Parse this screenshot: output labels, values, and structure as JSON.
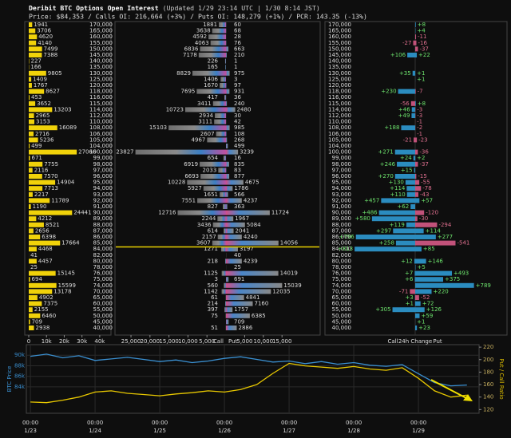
{
  "header": {
    "title": "Deribit BTC Options Open Interest",
    "updated": "(Updated 1/29 23:14 UTC | 1/30 8:14 JST)",
    "stats": "Price: $84,353 / Calls OI: 216,664 (+3%) / Puts OI: 148,279 (+1%) / PCR: 143.35 (-13%)"
  },
  "chart_data": [
    {
      "type": "hbar",
      "color": "#f0d20a",
      "values": [
        1941,
        3706,
        4620,
        4140,
        7499,
        7388,
        227,
        166,
        9805,
        1409,
        1767,
        8627,
        453,
        3652,
        13203,
        2965,
        3153,
        16089,
        2716,
        5236,
        499,
        27066,
        671,
        7755,
        2116,
        7570,
        14904,
        7713,
        2217,
        11789,
        1190,
        24441,
        4212,
        8521,
        2656,
        6398,
        17664,
        4468,
        41,
        4457,
        25,
        15145,
        694,
        15599,
        13178,
        4902,
        7375,
        2155,
        6460,
        709,
        2938
      ],
      "xlim": [
        0,
        45000
      ],
      "xticks": [
        0,
        {
          "value": 10000,
          "label": "10k"
        },
        {
          "value": 20000,
          "label": "20k"
        },
        {
          "value": 30000,
          "label": "30k"
        },
        {
          "value": 40000,
          "label": "40k"
        }
      ]
    },
    {
      "type": "butterfly",
      "categories": [
        {
          "value": 170000,
          "label": "170,000"
        },
        {
          "value": 165000,
          "label": "165,000"
        },
        {
          "value": 160000,
          "label": "160,000"
        },
        {
          "value": 155000,
          "label": "155,000"
        },
        {
          "value": 150000,
          "label": "150,000"
        },
        {
          "value": 145000,
          "label": "145,000"
        },
        {
          "value": 140000,
          "label": "140,000"
        },
        {
          "value": 135000,
          "label": "135,000"
        },
        {
          "value": 130000,
          "label": "130,000"
        },
        {
          "value": 125000,
          "label": "125,000"
        },
        {
          "value": 120000,
          "label": "120,000"
        },
        {
          "value": 118000,
          "label": "118,000"
        },
        {
          "value": 116000,
          "label": "116,000"
        },
        {
          "value": 115000,
          "label": "115,000"
        },
        {
          "value": 114000,
          "label": "114,000"
        },
        {
          "value": 112000,
          "label": "112,000"
        },
        {
          "value": 110000,
          "label": "110,000"
        },
        {
          "value": 108000,
          "label": "108,000"
        },
        {
          "value": 106000,
          "label": "106,000"
        },
        {
          "value": 105000,
          "label": "105,000"
        },
        {
          "value": 104000,
          "label": "104,000"
        },
        {
          "value": 100000,
          "label": "100,000"
        },
        {
          "value": 99000,
          "label": "99,000"
        },
        {
          "value": 98000,
          "label": "98,000"
        },
        {
          "value": 97000,
          "label": "97,000"
        },
        {
          "value": 96000,
          "label": "96,000"
        },
        {
          "value": 95000,
          "label": "95,000"
        },
        {
          "value": 94000,
          "label": "94,000"
        },
        {
          "value": 93000,
          "label": "93,000"
        },
        {
          "value": 92000,
          "label": "92,000"
        },
        {
          "value": 91000,
          "label": "91,000"
        },
        {
          "value": 90000,
          "label": "90,000"
        },
        {
          "value": 89000,
          "label": "89,000"
        },
        {
          "value": 88000,
          "label": "88,000"
        },
        {
          "value": 87000,
          "label": "87,000"
        },
        {
          "value": 86000,
          "label": "86,000"
        },
        {
          "value": 85000,
          "label": "85,000"
        },
        {
          "value": 84000,
          "label": "84,000"
        },
        {
          "value": 82000,
          "label": "82,000"
        },
        {
          "value": 80000,
          "label": "80,000"
        },
        {
          "value": 78000,
          "label": "78,000"
        },
        {
          "value": 76000,
          "label": "76,000"
        },
        {
          "value": 75000,
          "label": "75,000"
        },
        {
          "value": 74000,
          "label": "74,000"
        },
        {
          "value": 70000,
          "label": "70,000"
        },
        {
          "value": 65000,
          "label": "65,000"
        },
        {
          "value": 60000,
          "label": "60,000"
        },
        {
          "value": 55000,
          "label": "55,000"
        },
        {
          "value": 50000,
          "label": "50,000"
        },
        {
          "value": 45000,
          "label": "45,000"
        },
        {
          "value": 40000,
          "label": "40,000"
        }
      ],
      "series": [
        {
          "name": "Call",
          "color": "url(#callGrad)",
          "values": [
            1881,
            3638,
            4592,
            4063,
            6836,
            7178,
            226,
            165,
            8829,
            1406,
            1670,
            7695,
            417,
            3411,
            10723,
            2934,
            3111,
            15103,
            2607,
            4967,
            null,
            23827,
            654,
            6919,
            2033,
            6693,
            10228,
            5927,
            1651,
            7551,
            827,
            12716,
            2244,
            3436,
            614,
            2157,
            3607,
            1271,
            null,
            218,
            null,
            1125,
            3,
            560,
            1142,
            61,
            214,
            397,
            75,
            null,
            51
          ]
        },
        {
          "name": "Put",
          "color": "url(#putGrad)",
          "values": [
            60,
            68,
            28,
            76,
            663,
            210,
            1,
            1,
            975,
            3,
            97,
            931,
            36,
            240,
            2480,
            30,
            42,
            985,
            108,
            268,
            499,
            3239,
            16,
            835,
            83,
            877,
            4675,
            1786,
            566,
            4237,
            363,
            11724,
            1967,
            5084,
            2041,
            4240,
            14056,
            3197,
            40,
            4239,
            25,
            14019,
            691,
            15039,
            12035,
            4841,
            7160,
            1757,
            6385,
            709,
            2886
          ]
        }
      ],
      "call_xlim": [
        0,
        29000
      ],
      "put_xlim": [
        0,
        25000
      ],
      "call_xticks": [
        {
          "value": 25000,
          "label": "25,000"
        },
        {
          "value": 20000,
          "label": "20,000"
        },
        {
          "value": 15000,
          "label": "15,000"
        },
        {
          "value": 10000,
          "label": "10,000"
        },
        {
          "value": 5000,
          "label": "5,000"
        }
      ],
      "put_xticks": [
        {
          "value": 5000,
          "label": "5,000"
        },
        {
          "value": 10000,
          "label": "10,000"
        },
        {
          "value": 15000,
          "label": "15,000"
        }
      ],
      "spot": 84353,
      "spot_color": "#e8d000"
    },
    {
      "type": "change",
      "categories": [
        {
          "value": 170000,
          "label": "170,000"
        },
        {
          "value": 165000,
          "label": "165,000"
        },
        {
          "value": 160000,
          "label": "160,000"
        },
        {
          "value": 155000,
          "label": "155,000"
        },
        {
          "value": 150000,
          "label": "150,000"
        },
        {
          "value": 145000,
          "label": "145,000"
        },
        {
          "value": 140000,
          "label": "140,000"
        },
        {
          "value": 135000,
          "label": "135,000"
        },
        {
          "value": 130000,
          "label": "130,000"
        },
        {
          "value": 125000,
          "label": "125,000"
        },
        {
          "value": 120000,
          "label": "120,000"
        },
        {
          "value": 118000,
          "label": "118,000"
        },
        {
          "value": 116000,
          "label": "116,000"
        },
        {
          "value": 115000,
          "label": "115,000"
        },
        {
          "value": 114000,
          "label": "114,000"
        },
        {
          "value": 112000,
          "label": "112,000"
        },
        {
          "value": 110000,
          "label": "110,000"
        },
        {
          "value": 108000,
          "label": "108,000"
        },
        {
          "value": 106000,
          "label": "106,000"
        },
        {
          "value": 105000,
          "label": "105,000"
        },
        {
          "value": 104000,
          "label": "104,000"
        },
        {
          "value": 100000,
          "label": "100,000"
        },
        {
          "value": 99000,
          "label": "99,000"
        },
        {
          "value": 98000,
          "label": "98,000"
        },
        {
          "value": 97000,
          "label": "97,000"
        },
        {
          "value": 96000,
          "label": "96,000"
        },
        {
          "value": 95000,
          "label": "95,000"
        },
        {
          "value": 94000,
          "label": "94,000"
        },
        {
          "value": 93000,
          "label": "93,000"
        },
        {
          "value": 92000,
          "label": "92,000"
        },
        {
          "value": 91000,
          "label": "91,000"
        },
        {
          "value": 90000,
          "label": "90,000"
        },
        {
          "value": 89000,
          "label": "89,000"
        },
        {
          "value": 88000,
          "label": "88,000"
        },
        {
          "value": 87000,
          "label": "87,000"
        },
        {
          "value": 86000,
          "label": "86,000"
        },
        {
          "value": 85000,
          "label": "85,000"
        },
        {
          "value": 84000,
          "label": "84,000"
        },
        {
          "value": 82000,
          "label": "82,000"
        },
        {
          "value": 80000,
          "label": "80,000"
        },
        {
          "value": 78000,
          "label": "78,000"
        },
        {
          "value": 76000,
          "label": "76,000"
        },
        {
          "value": 75000,
          "label": "75,000"
        },
        {
          "value": 74000,
          "label": "74,000"
        },
        {
          "value": 70000,
          "label": "70,000"
        },
        {
          "value": 65000,
          "label": "65,000"
        },
        {
          "value": 60000,
          "label": "60,000"
        },
        {
          "value": 55000,
          "label": "55,000"
        },
        {
          "value": 50000,
          "label": "50,000"
        },
        {
          "value": 45000,
          "label": "45,000"
        },
        {
          "value": 40000,
          "label": "40,000"
        }
      ],
      "xlabel": "24h Change",
      "xlim": [
        -1200,
        1200
      ],
      "positive_color": "#2b8cbf",
      "negative_color": "#c2527a",
      "positive_text": "#6ee66e",
      "negative_text": "#e0708f",
      "series": [
        {
          "name": "Call",
          "values": [
            null,
            null,
            null,
            -27,
            null,
            106,
            null,
            null,
            35,
            null,
            null,
            230,
            null,
            -56,
            46,
            49,
            null,
            188,
            null,
            -21,
            null,
            271,
            24,
            246,
            15,
            270,
            130,
            114,
            110,
            457,
            62,
            486,
            580,
            119,
            297,
            796,
            258,
            813,
            null,
            12,
            null,
            7,
            6,
            null,
            -71,
            3,
            1,
            305,
            null,
            null,
            null
          ],
          "value_labels": [
            null,
            null,
            null,
            "-27",
            null,
            "+106",
            null,
            null,
            "+35",
            null,
            null,
            "+230",
            null,
            "-56",
            "+46",
            "+49",
            null,
            "+188",
            null,
            "-21",
            null,
            "+271",
            "+24",
            "+246",
            "+15",
            "+270",
            "+130",
            "+114",
            "+110",
            "+457",
            "+62",
            "+486",
            "+580",
            "+119",
            "+297",
            "+796",
            "+258",
            "+813",
            null,
            "+12",
            null,
            "+7",
            "+6",
            null,
            "-71",
            "+3",
            "+1",
            "+305",
            null,
            null,
            null
          ]
        },
        {
          "name": "Put",
          "values": [
            8,
            4,
            -11,
            -16,
            -37,
            22,
            null,
            null,
            1,
            1,
            null,
            -7,
            null,
            8,
            -3,
            -3,
            -1,
            -2,
            -1,
            -23,
            null,
            -36,
            2,
            -37,
            null,
            -15,
            -55,
            -78,
            -43,
            57,
            null,
            -120,
            -30,
            -294,
            114,
            277,
            -541,
            85,
            null,
            146,
            5,
            493,
            375,
            789,
            220,
            -52,
            72,
            126,
            59,
            1,
            23
          ],
          "value_labels": [
            "+8",
            "+4",
            "-11",
            "-16",
            "-37",
            "+22",
            null,
            null,
            "+1",
            "+1",
            null,
            "-7",
            null,
            "+8",
            "-3",
            "-3",
            "-1",
            "-2",
            "-1",
            "-23",
            null,
            "-36",
            "+2",
            "-37",
            null,
            "-15",
            "-55",
            "-78",
            "-43",
            "+57",
            null,
            "-120",
            "-30",
            "-294",
            "+114",
            "+277",
            "-541",
            "+85",
            null,
            "+146",
            "+5",
            "+493",
            "+375",
            "+789",
            "+220",
            "-52",
            "+72",
            "+126",
            "+59",
            "+1",
            "+23"
          ]
        }
      ]
    },
    {
      "type": "line",
      "x": [
        0,
        6,
        12,
        18,
        24,
        30,
        36,
        42,
        48,
        54,
        60,
        66,
        72,
        78,
        84,
        90,
        96,
        102,
        108,
        114,
        120,
        126,
        132,
        138,
        144,
        150,
        156,
        162
      ],
      "xlim": [
        -1.5,
        166.5
      ],
      "xticks": [
        {
          "value": 0,
          "label": "00:00",
          "date": "1/23"
        },
        {
          "value": 24,
          "label": "00:00",
          "date": "1/24"
        },
        {
          "value": 48,
          "label": "00:00",
          "date": "1/25"
        },
        {
          "value": 72,
          "label": "00:00",
          "date": "1/26"
        },
        {
          "value": 96,
          "label": "00:00",
          "date": "1/27"
        },
        {
          "value": 120,
          "label": "00:00",
          "date": "1/28"
        },
        {
          "value": 144,
          "label": "00:00",
          "date": "1/29"
        }
      ],
      "ylabel": "BTC Price",
      "ylabel_color": "#3a8fd0",
      "ylim": [
        79000,
        92000
      ],
      "yticks": [
        {
          "value": 84000,
          "label": "84k"
        },
        {
          "value": 86000,
          "label": "86k"
        },
        {
          "value": 88000,
          "label": "88k"
        },
        {
          "value": 90000,
          "label": "90k"
        }
      ],
      "y2label": "Put / Call Ratio",
      "y2label_color": "#e0c000",
      "y2lim": [
        114,
        224
      ],
      "y2ticks": [
        120,
        140,
        160,
        180,
        200,
        220
      ],
      "grid": true,
      "series": [
        {
          "color": "#3a8fd0",
          "axis": "y",
          "values": [
            89800,
            90200,
            89500,
            89900,
            89000,
            89300,
            89600,
            89200,
            88800,
            89100,
            88600,
            88900,
            89400,
            89700,
            89200,
            88700,
            88900,
            88400,
            88800,
            88300,
            88600,
            88100,
            87900,
            88200,
            86500,
            84800,
            84200,
            84350
          ]
        },
        {
          "color": "#e8c800",
          "axis": "y2",
          "values": [
            132,
            131,
            135,
            140,
            148,
            150,
            146,
            144,
            142,
            145,
            147,
            150,
            148,
            152,
            160,
            178,
            194,
            190,
            188,
            186,
            189,
            185,
            183,
            187,
            170,
            150,
            140,
            143
          ]
        }
      ]
    }
  ]
}
